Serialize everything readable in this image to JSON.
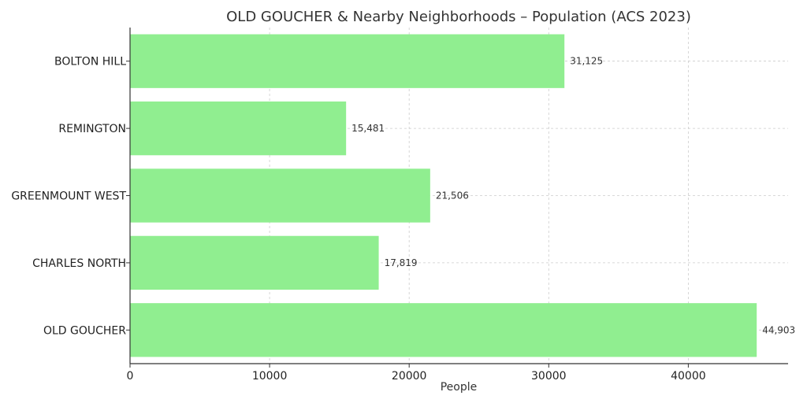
{
  "chart_data": {
    "type": "bar",
    "orientation": "horizontal",
    "title": "OLD GOUCHER & Nearby Neighborhoods – Population (ACS 2023)",
    "xlabel": "People",
    "ylabel": "",
    "categories": [
      "BOLTON HILL",
      "REMINGTON",
      "GREENMOUNT WEST",
      "CHARLES NORTH",
      "OLD GOUCHER"
    ],
    "values": [
      31125,
      15481,
      21506,
      17819,
      44903
    ],
    "value_labels": [
      "31,125",
      "15,481",
      "21,506",
      "17,819",
      "44,903"
    ],
    "xlim": [
      0,
      47150
    ],
    "x_ticks": [
      0,
      10000,
      20000,
      30000,
      40000
    ],
    "x_tick_labels": [
      "0",
      "10000",
      "20000",
      "30000",
      "40000"
    ],
    "bar_color": "#90EE90",
    "grid": true
  }
}
